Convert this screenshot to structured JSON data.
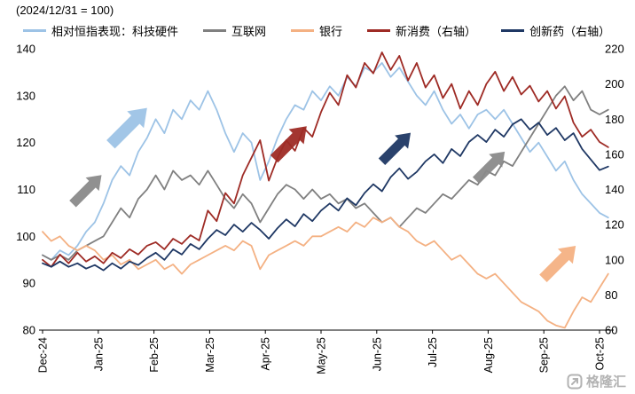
{
  "title": "(2024/12/31 = 100)",
  "watermark": "格隆汇",
  "legend": [
    {
      "id": "tech-hardware",
      "label": "相对恒指表现：科技硬件",
      "color": "#9DC3E6"
    },
    {
      "id": "internet",
      "label": "互联网",
      "color": "#808080"
    },
    {
      "id": "banks",
      "label": "银行",
      "color": "#F4B183"
    },
    {
      "id": "new-consumption",
      "label": "新消费（右轴）",
      "color": "#9E2B25"
    },
    {
      "id": "innovative-pharma",
      "label": "创新药（右轴）",
      "color": "#1F3864"
    }
  ],
  "chart_data": {
    "type": "line",
    "title": "(2024/12/31 = 100)",
    "x_tick_labels": [
      "Dec-24",
      "Jan-25",
      "Feb-25",
      "Mar-25",
      "Apr-25",
      "May-25",
      "Jun-25",
      "Jul-25",
      "Aug-25",
      "Sep-25",
      "Oct-25"
    ],
    "points_per_month": 6.4,
    "left_axis": {
      "min": 80,
      "max": 140,
      "ticks": [
        80,
        90,
        100,
        110,
        120,
        130,
        140
      ]
    },
    "right_axis": {
      "min": 60,
      "max": 220,
      "ticks": [
        60,
        80,
        100,
        120,
        140,
        160,
        180,
        200,
        220
      ]
    },
    "grid": false,
    "legend_position": "top",
    "series": [
      {
        "id": "tech-hardware",
        "name": "相对恒指表现：科技硬件",
        "axis": "left",
        "color": "#9DC3E6",
        "width": 1.8,
        "values": [
          96,
          95,
          97,
          96,
          98,
          101,
          103,
          107,
          112,
          115,
          113,
          118,
          121,
          125,
          122,
          127,
          125,
          129,
          127,
          131,
          127,
          122,
          118,
          122,
          120,
          112,
          116,
          121,
          125,
          128,
          127,
          131,
          129,
          132,
          130,
          134,
          132,
          136,
          135,
          137,
          134,
          136,
          133,
          130,
          128,
          131,
          127,
          124,
          126,
          123,
          126,
          127,
          125,
          127,
          124,
          121,
          118,
          120,
          117,
          114,
          116,
          112,
          109,
          107,
          105,
          104
        ]
      },
      {
        "id": "internet",
        "name": "互联网",
        "axis": "left",
        "color": "#808080",
        "width": 1.8,
        "values": [
          96,
          95,
          96,
          95,
          97,
          98,
          99,
          100,
          103,
          106,
          104,
          108,
          110,
          113,
          110,
          114,
          112,
          113,
          111,
          114,
          111,
          108,
          106,
          109,
          107,
          103,
          106,
          109,
          111,
          110,
          108,
          110,
          108,
          109,
          107,
          108,
          106,
          107,
          105,
          103,
          104,
          102,
          104,
          106,
          105,
          107,
          109,
          108,
          110,
          112,
          111,
          114,
          113,
          116,
          115,
          118,
          121,
          124,
          127,
          130,
          132,
          129,
          131,
          127,
          126,
          127
        ]
      },
      {
        "id": "banks",
        "name": "银行",
        "axis": "left",
        "color": "#F4B183",
        "width": 1.8,
        "values": [
          101,
          99,
          100,
          98,
          97,
          98,
          97,
          95,
          96,
          94,
          95,
          93,
          94,
          95,
          93,
          94,
          92,
          94,
          95,
          96,
          97,
          98,
          97,
          99,
          98,
          93,
          96,
          97,
          98,
          99,
          98,
          100,
          100,
          101,
          102,
          101,
          103,
          102,
          104,
          103,
          104,
          102,
          101,
          99,
          98,
          99,
          97,
          95,
          96,
          94,
          92,
          91,
          92,
          90,
          88,
          86,
          85,
          84,
          82,
          81,
          80.5,
          84,
          87,
          86,
          89,
          92
        ]
      },
      {
        "id": "new-consumption",
        "name": "新消费（右轴）",
        "axis": "right",
        "color": "#9E2B25",
        "width": 1.8,
        "values": [
          100,
          96,
          103,
          98,
          104,
          99,
          102,
          98,
          104,
          101,
          106,
          103,
          108,
          110,
          106,
          112,
          109,
          114,
          111,
          128,
          122,
          138,
          132,
          148,
          158,
          168,
          145,
          158,
          168,
          162,
          175,
          170,
          184,
          195,
          188,
          205,
          198,
          212,
          206,
          218,
          208,
          216,
          202,
          212,
          198,
          205,
          192,
          200,
          186,
          196,
          188,
          200,
          207,
          196,
          204,
          194,
          199,
          190,
          196,
          186,
          193,
          178,
          170,
          174,
          167,
          164
        ]
      },
      {
        "id": "innovative-pharma",
        "name": "创新药（右轴）",
        "axis": "right",
        "color": "#1F3864",
        "width": 1.8,
        "values": [
          98,
          96,
          99,
          96,
          98,
          95,
          97,
          94,
          98,
          95,
          99,
          97,
          101,
          104,
          100,
          106,
          103,
          109,
          106,
          112,
          117,
          114,
          120,
          116,
          121,
          117,
          112,
          118,
          123,
          119,
          126,
          122,
          128,
          132,
          128,
          135,
          131,
          138,
          143,
          139,
          147,
          152,
          146,
          150,
          156,
          160,
          155,
          163,
          159,
          167,
          171,
          167,
          174,
          170,
          177,
          180,
          174,
          178,
          171,
          175,
          168,
          172,
          163,
          157,
          151,
          153
        ]
      }
    ],
    "annotations": {
      "arrows": [
        {
          "id": "arrow-internet-early",
          "color": "#8a8a8a",
          "month": 0.8,
          "value_left_axis": 110,
          "length": 46,
          "angle": -45
        },
        {
          "id": "arrow-tech-hardware",
          "color": "#9DC3E6",
          "month": 1.55,
          "value_left_axis": 123.5,
          "length": 58,
          "angle": -45
        },
        {
          "id": "arrow-new-consumption",
          "color": "#9E2B25",
          "month": 4.45,
          "value_left_axis": 120,
          "length": 52,
          "angle": -45
        },
        {
          "id": "arrow-innovative-pharma",
          "color": "#1F3864",
          "month": 6.35,
          "value_left_axis": 119,
          "length": 46,
          "angle": -45
        },
        {
          "id": "arrow-internet-late",
          "color": "#8a8a8a",
          "month": 8.04,
          "value_left_axis": 115,
          "length": 46,
          "angle": -45
        },
        {
          "id": "arrow-banks",
          "color": "#F4B183",
          "month": 9.28,
          "value_left_axis": 94.5,
          "length": 52,
          "angle": -45
        }
      ]
    }
  }
}
